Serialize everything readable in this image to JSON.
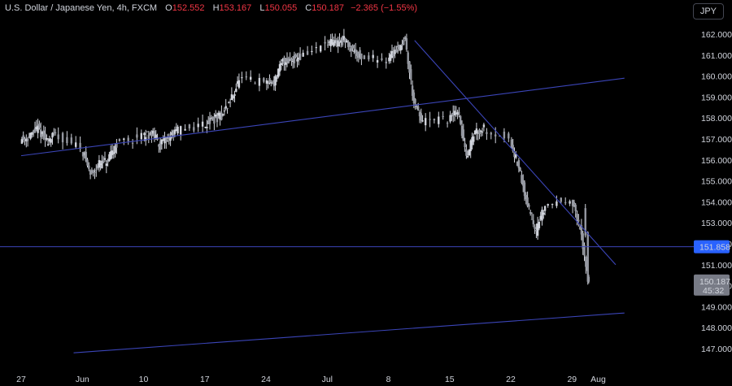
{
  "header": {
    "symbol": "U.S. Dollar / Japanese Yen, 4h, FXCM",
    "open_label": "O",
    "open": "152.552",
    "high_label": "H",
    "high": "153.167",
    "low_label": "L",
    "low": "150.055",
    "close_label": "C",
    "close": "150.187",
    "change": "−2.365 (−1.55%)"
  },
  "currency_button": "JPY",
  "price_tags": {
    "level": "151.858",
    "last_price": "150.187",
    "countdown": "45:32"
  },
  "colors": {
    "background": "#000000",
    "candle": "#d1d4dc",
    "trendline": "#3b45b8",
    "level_tag": "#2962ff",
    "last_tag": "#787b86"
  },
  "chart_data": {
    "type": "candlestick",
    "title": "U.S. Dollar / Japanese Yen, 4h, FXCM",
    "ylim": [
      146.4,
      162.6
    ],
    "y_ticks": [
      147,
      148,
      149,
      150,
      151,
      152,
      153,
      154,
      155,
      156,
      157,
      158,
      159,
      160,
      161,
      162
    ],
    "y_tick_labels": [
      "147.000",
      "148.000",
      "149.000",
      "150.000",
      "151.000",
      "152.000",
      "153.000",
      "154.000",
      "155.000",
      "156.000",
      "157.000",
      "158.000",
      "159.000",
      "160.000",
      "161.000",
      "162.000"
    ],
    "x_ticks": [
      {
        "label": "27",
        "date": "2024-05-27"
      },
      {
        "label": "Jun",
        "date": "2024-06-03"
      },
      {
        "label": "10",
        "date": "2024-06-10"
      },
      {
        "label": "17",
        "date": "2024-06-17"
      },
      {
        "label": "24",
        "date": "2024-06-24"
      },
      {
        "label": "Jul",
        "date": "2024-07-01"
      },
      {
        "label": "8",
        "date": "2024-07-08"
      },
      {
        "label": "15",
        "date": "2024-07-15"
      },
      {
        "label": "22",
        "date": "2024-07-22"
      },
      {
        "label": "29",
        "date": "2024-07-29"
      },
      {
        "label": "Aug",
        "date": "2024-08-01"
      }
    ],
    "price_path": [
      [
        "2024-05-27",
        157.0
      ],
      [
        "2024-05-28",
        157.1
      ],
      [
        "2024-05-29",
        157.5
      ],
      [
        "2024-05-30",
        156.9
      ],
      [
        "2024-05-31",
        157.2
      ],
      [
        "2024-06-03",
        156.6
      ],
      [
        "2024-06-04",
        155.3
      ],
      [
        "2024-06-05",
        155.8
      ],
      [
        "2024-06-06",
        155.9
      ],
      [
        "2024-06-07",
        156.8
      ],
      [
        "2024-06-10",
        157.1
      ],
      [
        "2024-06-11",
        157.3
      ],
      [
        "2024-06-12",
        156.7
      ],
      [
        "2024-06-13",
        157.1
      ],
      [
        "2024-06-14",
        157.4
      ],
      [
        "2024-06-17",
        157.7
      ],
      [
        "2024-06-18",
        157.9
      ],
      [
        "2024-06-19",
        158.1
      ],
      [
        "2024-06-20",
        158.8
      ],
      [
        "2024-06-21",
        159.8
      ],
      [
        "2024-06-24",
        159.7
      ],
      [
        "2024-06-25",
        159.7
      ],
      [
        "2024-06-26",
        160.7
      ],
      [
        "2024-06-27",
        160.8
      ],
      [
        "2024-06-28",
        160.9
      ],
      [
        "2024-07-01",
        161.5
      ],
      [
        "2024-07-02",
        161.6
      ],
      [
        "2024-07-03",
        161.7
      ],
      [
        "2024-07-04",
        161.3
      ],
      [
        "2024-07-05",
        160.9
      ],
      [
        "2024-07-08",
        160.8
      ],
      [
        "2024-07-09",
        161.3
      ],
      [
        "2024-07-10",
        161.7
      ],
      [
        "2024-07-11",
        158.7
      ],
      [
        "2024-07-12",
        157.8
      ],
      [
        "2024-07-15",
        157.9
      ],
      [
        "2024-07-16",
        158.4
      ],
      [
        "2024-07-17",
        156.2
      ],
      [
        "2024-07-18",
        157.4
      ],
      [
        "2024-07-19",
        157.5
      ],
      [
        "2024-07-22",
        157.0
      ],
      [
        "2024-07-23",
        155.6
      ],
      [
        "2024-07-24",
        153.8
      ],
      [
        "2024-07-25",
        152.6
      ],
      [
        "2024-07-26",
        153.8
      ],
      [
        "2024-07-29",
        154.2
      ],
      [
        "2024-07-30",
        152.7
      ],
      [
        "2024-07-31",
        150.187
      ]
    ],
    "lines": [
      {
        "name": "rising trendline upper",
        "kind": "trendline",
        "start": [
          "2024-05-27",
          156.2
        ],
        "end": [
          "2024-08-04",
          159.9
        ]
      },
      {
        "name": "falling trendline",
        "kind": "trendline",
        "start": [
          "2024-07-11",
          161.7
        ],
        "end": [
          "2024-08-03",
          151.0
        ]
      },
      {
        "name": "rising trendline lower",
        "kind": "trendline",
        "start": [
          "2024-06-02",
          146.8
        ],
        "end": [
          "2024-08-04",
          148.7
        ]
      },
      {
        "name": "support level",
        "kind": "horizontal",
        "value": 151.858
      }
    ],
    "grid": false,
    "legend": "none"
  }
}
